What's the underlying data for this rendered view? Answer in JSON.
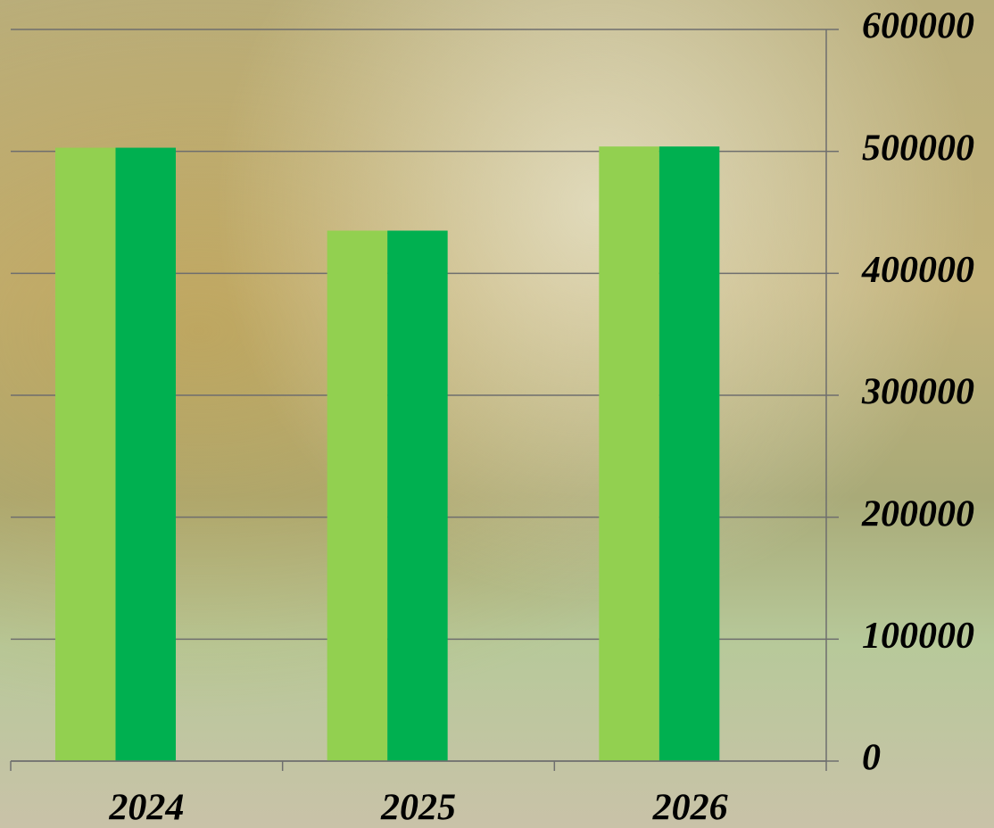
{
  "chart_data": {
    "type": "bar",
    "categories": [
      "2024",
      "2025",
      "2026"
    ],
    "series": [
      {
        "color": "#92d050",
        "values": [
          503000,
          435000,
          504000
        ]
      },
      {
        "color": "#00b050",
        "values": [
          503000,
          435000,
          504000
        ]
      }
    ],
    "ylim": [
      0,
      600000
    ],
    "yticks": [
      0,
      100000,
      200000,
      300000,
      400000,
      500000,
      600000
    ],
    "grid": true
  }
}
